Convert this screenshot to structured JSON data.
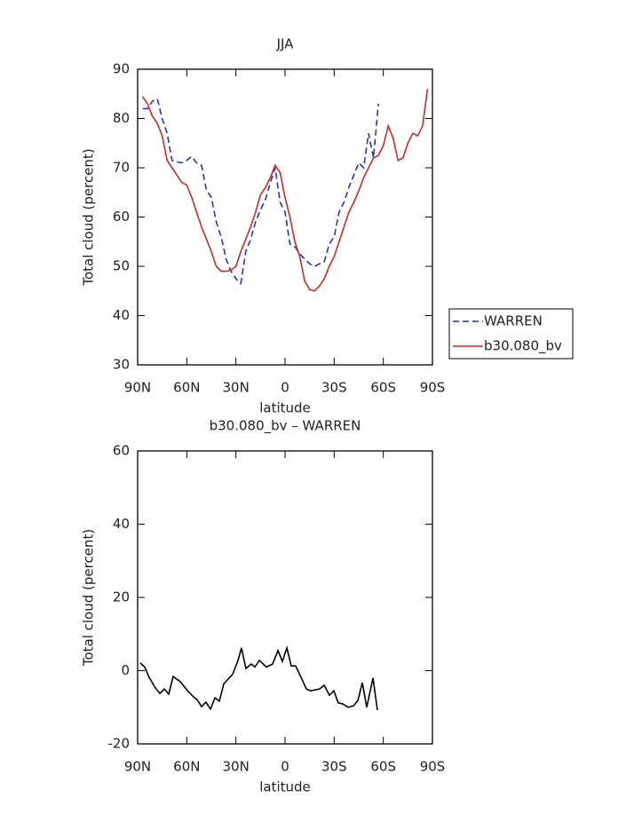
{
  "chart_data": [
    {
      "type": "line",
      "title": "JJA",
      "xlabel": "latitude",
      "ylabel": "Total cloud (percent)",
      "x": [
        87,
        84,
        81,
        78,
        75,
        72,
        69,
        66,
        63,
        60,
        57,
        54,
        51,
        48,
        45,
        42,
        39,
        36,
        33,
        30,
        27,
        24,
        21,
        18,
        15,
        12,
        9,
        6,
        3,
        0,
        -3,
        -6,
        -9,
        -12,
        -15,
        -18,
        -21,
        -24,
        -27,
        -30,
        -33,
        -36,
        -39,
        -42,
        -45,
        -48,
        -51,
        -54,
        -57,
        -60,
        -63,
        -66,
        -69,
        -72,
        -75,
        -78,
        -81,
        -84,
        -87
      ],
      "series": [
        {
          "name": "WARREN",
          "color": "#2233cc",
          "linestyle": "dashed",
          "values": [
            82,
            82,
            83.5,
            84,
            80,
            77,
            71.5,
            71.2,
            71,
            71.5,
            72.3,
            71,
            70.5,
            65.5,
            64,
            59,
            56,
            51.5,
            49,
            47.5,
            46.5,
            53,
            55.5,
            59,
            61.5,
            63.5,
            67,
            70,
            63,
            61,
            54.5,
            54,
            52.5,
            51.5,
            50.5,
            50,
            50.5,
            51,
            54.5,
            56,
            61,
            63,
            66,
            68.5,
            71,
            70,
            77,
            72,
            83,
            null,
            null,
            null,
            null,
            null,
            null,
            null,
            null,
            null,
            null
          ]
        },
        {
          "name": "b30.080_bv",
          "color": "#dd2222",
          "linestyle": "solid",
          "values": [
            84.5,
            83,
            80.5,
            79,
            76.5,
            71.5,
            70,
            68.5,
            67,
            66.5,
            64,
            61,
            58,
            55.5,
            53,
            50,
            49,
            49,
            49.2,
            50,
            53,
            55.5,
            58,
            61,
            64.5,
            66,
            68,
            70.5,
            69,
            64,
            60,
            55,
            52,
            47,
            45.3,
            45,
            46,
            47.5,
            50,
            52,
            55,
            58,
            61,
            63,
            65.3,
            68,
            70,
            72,
            72.5,
            74.5,
            78.5,
            76,
            71.5,
            72,
            75,
            77,
            76.5,
            78.5,
            86
          ]
        }
      ],
      "xlim": [
        90,
        -90
      ],
      "xticks": [
        {
          "value": 90,
          "label": "90N"
        },
        {
          "value": 60,
          "label": "60N"
        },
        {
          "value": 30,
          "label": "30N"
        },
        0,
        {
          "value": -30,
          "label": "30S"
        },
        {
          "value": -60,
          "label": "60S"
        },
        {
          "value": -90,
          "label": "90S"
        }
      ],
      "ylim": [
        30,
        90
      ],
      "yticks": [
        30,
        40,
        50,
        60,
        70,
        80,
        90
      ],
      "grid": false,
      "legend": "right"
    },
    {
      "type": "line",
      "title": "b30.080_bv – WARREN",
      "xlabel": "latitude",
      "ylabel": "Total cloud (percent)",
      "x": [
        88.4,
        85.7,
        83,
        79.2,
        76.4,
        73.7,
        71,
        68.3,
        64,
        59.1,
        55.8,
        53.7,
        51,
        48.3,
        45.5,
        42.8,
        40.1,
        37.4,
        32,
        28.7,
        26.6,
        23.9,
        20.6,
        18.4,
        15.7,
        11.4,
        7.6,
        4.3,
        1.6,
        -1.1,
        -3.8,
        -6.5,
        -10.3,
        -13,
        -15.7,
        -21.1,
        -23.9,
        -27.1,
        -29.8,
        -32.5,
        -35.3,
        -38.5,
        -41.8,
        -44.5,
        -47.2,
        -49.9,
        -53.7,
        -56.4
      ],
      "values": [
        2.1,
        1,
        -1.8,
        -4.7,
        -6.2,
        -5,
        -6.4,
        -1.6,
        -3,
        -5.7,
        -7.2,
        -7.9,
        -9.8,
        -8.6,
        -10.5,
        -7.4,
        -8.3,
        -3.6,
        -1,
        2.8,
        6.2,
        0.6,
        1.8,
        1,
        2.8,
        1,
        1.8,
        5.5,
        2.5,
        6.2,
        1.3,
        1.3,
        -2.3,
        -5,
        -5.5,
        -5,
        -4,
        -6.7,
        -5.5,
        -8.8,
        -9.1,
        -10,
        -9.6,
        -8.1,
        -3.3,
        -10,
        -2,
        -10.8
      ],
      "color": "#000000",
      "xlim": [
        90,
        -90
      ],
      "xticks": [
        {
          "value": 90,
          "label": "90N"
        },
        {
          "value": 60,
          "label": "60N"
        },
        {
          "value": 30,
          "label": "30N"
        },
        0,
        {
          "value": -30,
          "label": "30S"
        },
        {
          "value": -60,
          "label": "60S"
        },
        {
          "value": -90,
          "label": "90S"
        }
      ],
      "ylim": [
        -20,
        60
      ],
      "yticks": [
        -20,
        0,
        20,
        40,
        60
      ],
      "grid": false
    }
  ]
}
